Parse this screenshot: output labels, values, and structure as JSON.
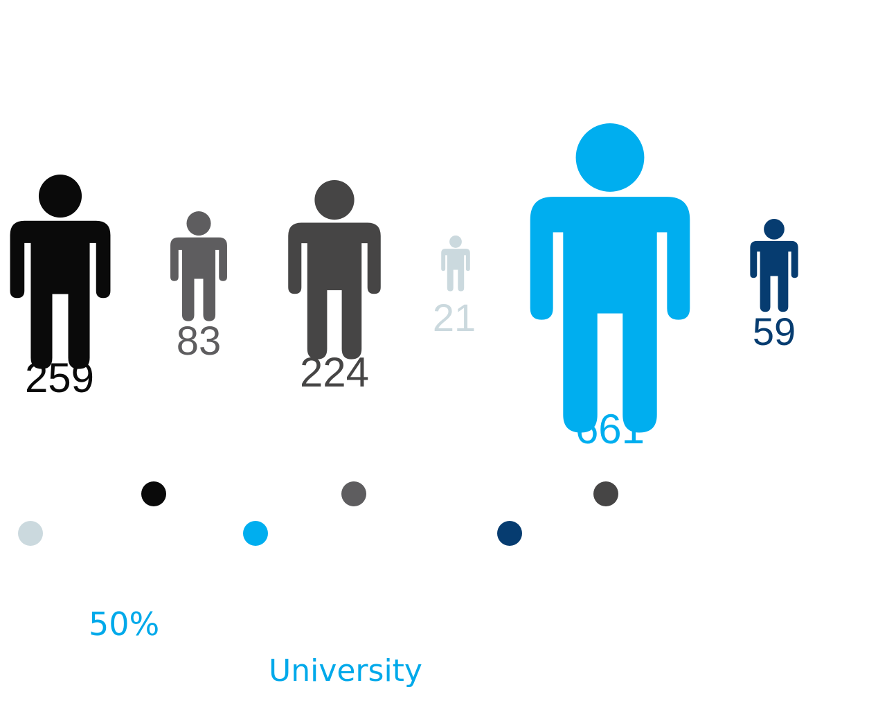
{
  "chart_data": {
    "type": "pictograph",
    "series": [
      {
        "value": 259,
        "color": "#0a0a0a"
      },
      {
        "value": 83,
        "color": "#5e5d5f"
      },
      {
        "value": 224,
        "color": "#464545"
      },
      {
        "value": 21,
        "color": "#cbd9de"
      },
      {
        "value": 661,
        "color": "#00aeef"
      },
      {
        "value": 59,
        "color": "#063c70"
      }
    ],
    "legend_dots": [
      "#0a0a0a",
      "#5e5d5f",
      "#464545",
      "#cbd9de",
      "#00aeef",
      "#063c70"
    ],
    "percent_label": "50%",
    "category_label": "University"
  }
}
